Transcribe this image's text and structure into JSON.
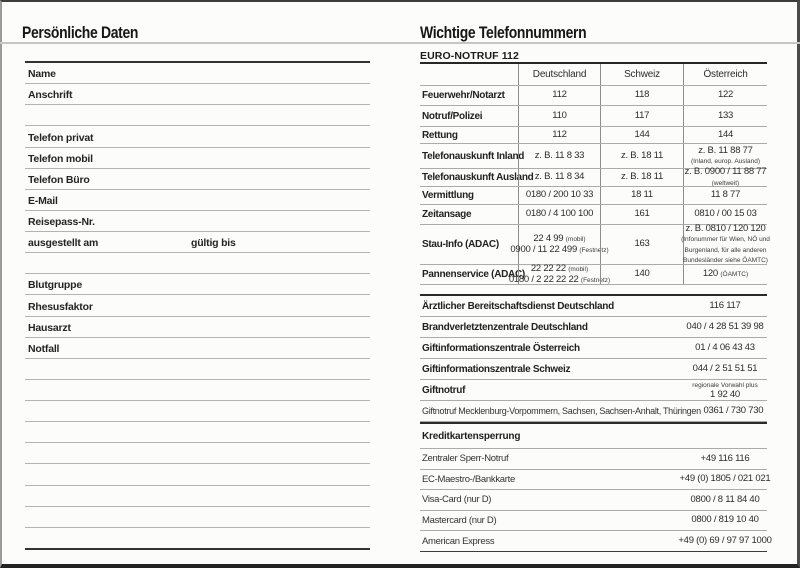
{
  "left": {
    "title": "Persönliche Daten",
    "rows": [
      {
        "type": "field",
        "label": "Name"
      },
      {
        "type": "field",
        "label": "Anschrift"
      },
      {
        "type": "blank"
      },
      {
        "type": "field",
        "label": "Telefon privat"
      },
      {
        "type": "field",
        "label": "Telefon mobil"
      },
      {
        "type": "field",
        "label": "Telefon Büro"
      },
      {
        "type": "field",
        "label": "E-Mail"
      },
      {
        "type": "field",
        "label": "Reisepass-Nr."
      },
      {
        "type": "field2",
        "label": "ausgestellt am",
        "label2": "gültig bis"
      },
      {
        "type": "blank"
      },
      {
        "type": "field",
        "label": "Blutgruppe"
      },
      {
        "type": "field",
        "label": "Rhesusfaktor"
      },
      {
        "type": "field",
        "label": "Hausarzt"
      },
      {
        "type": "field",
        "label": "Notfall"
      },
      {
        "type": "blank"
      },
      {
        "type": "blank"
      },
      {
        "type": "blank"
      },
      {
        "type": "blank"
      },
      {
        "type": "blank"
      },
      {
        "type": "blank"
      },
      {
        "type": "blank"
      },
      {
        "type": "blank"
      },
      {
        "type": "blank"
      }
    ]
  },
  "right": {
    "title": "Wichtige Telefonnummern",
    "euro_table": {
      "heading": "EURO-NOTRUF 112",
      "columns": [
        "Deutschland",
        "Schweiz",
        "Österreich"
      ],
      "rows": [
        {
          "label": "Feuerwehr/Notarzt",
          "de": [
            [
              {
                "t": "112"
              }
            ]
          ],
          "ch": [
            [
              {
                "t": "118"
              }
            ]
          ],
          "at": [
            [
              {
                "t": "122"
              }
            ]
          ]
        },
        {
          "label": "Notruf/Polizei",
          "de": [
            [
              {
                "t": "110"
              }
            ]
          ],
          "ch": [
            [
              {
                "t": "117"
              }
            ]
          ],
          "at": [
            [
              {
                "t": "133"
              }
            ]
          ]
        },
        {
          "label": "Rettung",
          "de": [
            [
              {
                "t": "112"
              }
            ]
          ],
          "ch": [
            [
              {
                "t": "144"
              }
            ]
          ],
          "at": [
            [
              {
                "t": "144"
              }
            ]
          ]
        },
        {
          "label": "Telefonauskunft Inland",
          "de": [
            [
              {
                "t": "z. B. 11 8 33"
              }
            ]
          ],
          "ch": [
            [
              {
                "t": "z. B. 18 11"
              }
            ]
          ],
          "at": [
            [
              {
                "t": "z. B. 11 88 77"
              }
            ],
            [
              {
                "t": "(Inland, europ. Ausland)",
                "s": true
              }
            ]
          ]
        },
        {
          "label": "Telefonauskunft Ausland",
          "de": [
            [
              {
                "t": "z. B. 11 8 34"
              }
            ]
          ],
          "ch": [
            [
              {
                "t": "z. B. 18 11"
              }
            ]
          ],
          "at": [
            [
              {
                "t": "z. B. 0900 / 11 88 77"
              }
            ],
            [
              {
                "t": "(weltweit)",
                "s": true
              }
            ]
          ]
        },
        {
          "label": "Vermittlung",
          "de": [
            [
              {
                "t": "0180 / 200 10 33"
              }
            ]
          ],
          "ch": [
            [
              {
                "t": "18 11"
              }
            ]
          ],
          "at": [
            [
              {
                "t": "11 8 77"
              }
            ]
          ]
        },
        {
          "label": "Zeitansage",
          "de": [
            [
              {
                "t": "0180 / 4 100 100"
              }
            ]
          ],
          "ch": [
            [
              {
                "t": "161"
              }
            ]
          ],
          "at": [
            [
              {
                "t": "0810 / 00 15 03"
              }
            ]
          ]
        },
        {
          "label": "Stau-Info (ADAC)",
          "de": [
            [
              {
                "t": "22 4 99 "
              },
              {
                "t": "(mobil)",
                "s": true
              }
            ],
            [
              {
                "t": "0900 / 11 22 499 "
              },
              {
                "t": "(Festnetz)",
                "s": true
              }
            ]
          ],
          "ch": [
            [
              {
                "t": "163"
              }
            ]
          ],
          "at": [
            [
              {
                "t": "z. B. 0810 / 120 120"
              }
            ],
            [
              {
                "t": "(Infonummer für Wien, NÖ und",
                "s": true
              }
            ],
            [
              {
                "t": "Burgenland, für alle anderen",
                "s": true
              }
            ],
            [
              {
                "t": "Bundesländer siehe ÖAMTC)",
                "s": true
              }
            ]
          ]
        },
        {
          "label": "Pannenservice (ADAC)",
          "de": [
            [
              {
                "t": "22 22 22 "
              },
              {
                "t": "(mobil)",
                "s": true
              }
            ],
            [
              {
                "t": "0180 / 2 22 22 22 "
              },
              {
                "t": "(Festnetz)",
                "s": true
              }
            ]
          ],
          "ch": [
            [
              {
                "t": "140"
              }
            ]
          ],
          "at": [
            [
              {
                "t": "120 "
              },
              {
                "t": "(ÖAMTC)",
                "s": true
              }
            ]
          ]
        }
      ]
    },
    "emergency_list": [
      {
        "label": "Ärztlicher Bereitschaftsdienst Deutschland",
        "bold": true,
        "value": [
          [
            {
              "t": "116 117"
            }
          ]
        ]
      },
      {
        "label": "Brandverletztenzentrale Deutschland",
        "bold": true,
        "value": [
          [
            {
              "t": "040 / 4 28 51 39 98"
            }
          ]
        ]
      },
      {
        "label": "Giftinformationszentrale Österreich",
        "bold": true,
        "value": [
          [
            {
              "t": "01 / 4 06 43 43"
            }
          ]
        ]
      },
      {
        "label": "Giftinformationszentrale Schweiz",
        "bold": true,
        "value": [
          [
            {
              "t": "044 / 2 51 51 51"
            }
          ]
        ]
      },
      {
        "label": "Giftnotruf",
        "bold": true,
        "value": [
          [
            {
              "t": "regionale Vorwahl plus",
              "s": true
            }
          ],
          [
            {
              "t": "1 92 40"
            }
          ]
        ]
      },
      {
        "label": "Giftnotruf Mecklenburg-Vorpommern, Sachsen, Sachsen-Anhalt, Thüringen",
        "bold": false,
        "value": [
          [
            {
              "t": "0361 / 730 730"
            }
          ]
        ]
      }
    ],
    "credit_section": {
      "heading": "Kreditkartensperrung",
      "rows": [
        {
          "label": "Zentraler Sperr-Notruf",
          "value": [
            [
              {
                "t": "+49 116 116"
              }
            ]
          ]
        },
        {
          "label": "EC-Maestro-/Bankkarte",
          "value": [
            [
              {
                "t": "+49 (0) 1805 / 021 021"
              }
            ]
          ]
        },
        {
          "label": "Visa-Card (nur D)",
          "value": [
            [
              {
                "t": "0800 / 8 11 84 40"
              }
            ]
          ]
        },
        {
          "label": "Mastercard (nur D)",
          "value": [
            [
              {
                "t": "0800 / 819 10 40"
              }
            ]
          ]
        },
        {
          "label": "American Express",
          "value": [
            [
              {
                "t": "+49 (0) 69 / 97 97 1000"
              }
            ]
          ]
        }
      ]
    }
  }
}
